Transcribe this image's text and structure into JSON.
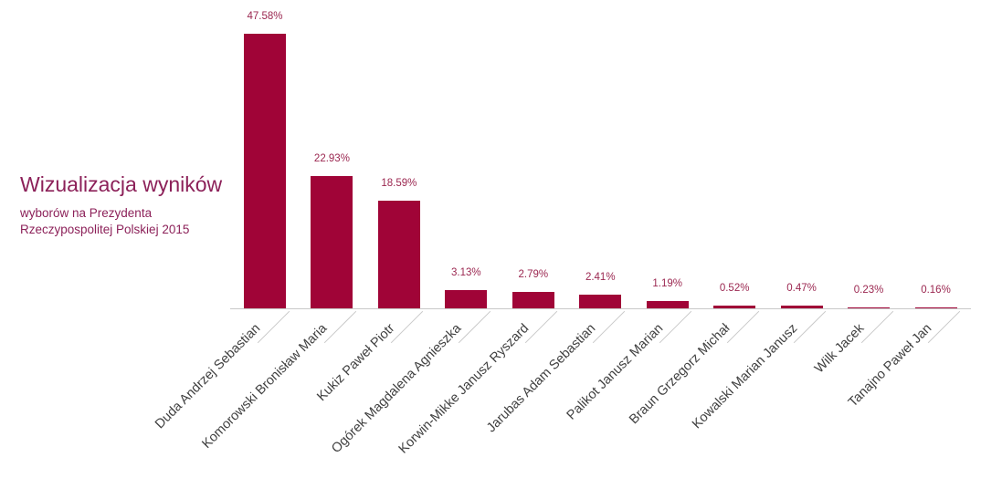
{
  "chart_data": {
    "type": "bar",
    "title": "Wizualizacja wyników",
    "subtitle": "wyborów na Prezydenta Rzeczypospolitej Polskiej 2015",
    "categories": [
      "Duda Andrzej Sebastian",
      "Komorowski Bronisław Maria",
      "Kukiz Paweł Piotr",
      "Ogórek Magdalena Agnieszka",
      "Korwin-Mikke Janusz Ryszard",
      "Jarubas Adam Sebastian",
      "Palikot Janusz Marian",
      "Braun Grzegorz Michał",
      "Kowalski Marian Janusz",
      "Wilk Jacek",
      "Tanajno Paweł Jan"
    ],
    "values": [
      47.58,
      22.93,
      18.59,
      3.13,
      2.79,
      2.41,
      1.19,
      0.52,
      0.47,
      0.23,
      0.16
    ],
    "value_labels": [
      "47.58%",
      "22.93%",
      "18.59%",
      "3.13%",
      "2.79%",
      "2.41%",
      "1.19%",
      "0.52%",
      "0.47%",
      "0.23%",
      "0.16%"
    ],
    "xlabel": "",
    "ylabel": "",
    "ylim": [
      0,
      50
    ],
    "grid": false,
    "legend": false,
    "value_labels_shown": true,
    "category_label_rotation_deg": -45,
    "colors": {
      "bar": "#a00437",
      "value_label": "#9b2750",
      "title": "#8c2159",
      "category_label": "#3f3f3f",
      "axis": "#c9c9c9",
      "background": "#ffffff"
    }
  }
}
